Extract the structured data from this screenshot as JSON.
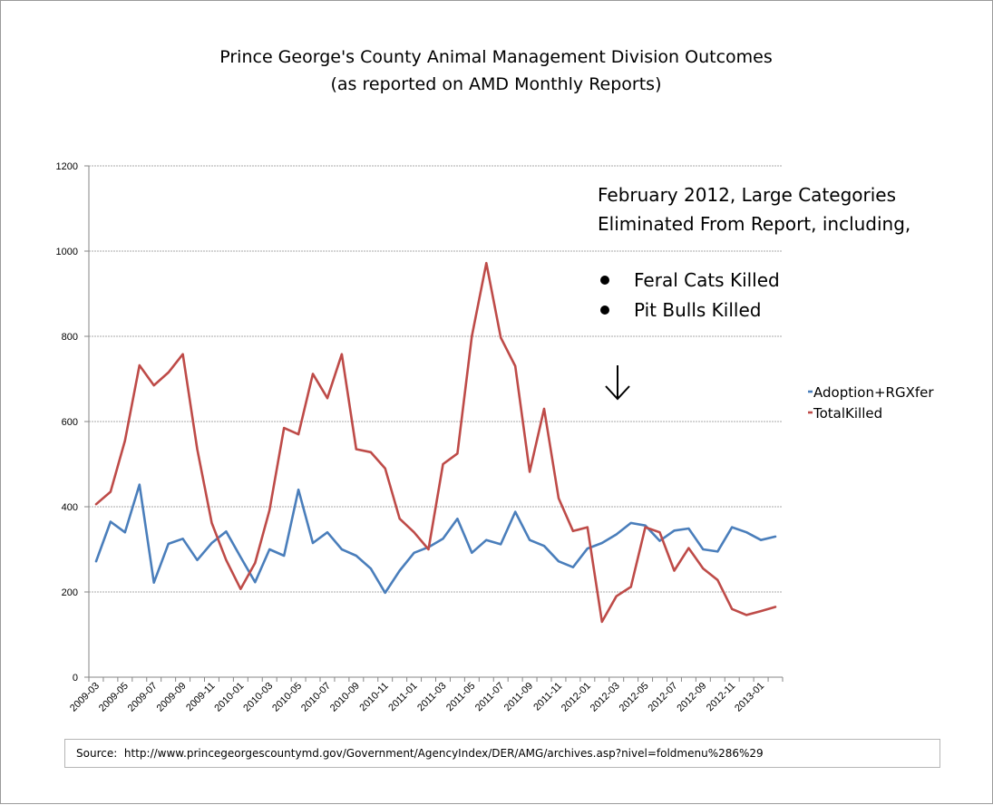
{
  "chart_data": {
    "type": "line",
    "title": "Prince George's County Animal Management Division Outcomes",
    "subtitle": "(as reported on AMD Monthly Reports)",
    "xlabel": "",
    "ylabel": "",
    "ylim": [
      0,
      1200
    ],
    "yticks": [
      "0",
      "200",
      "400",
      "600",
      "800",
      "1000",
      "1200"
    ],
    "grid": true,
    "legend_position": "right",
    "x": [
      "2009-03",
      "2009-04",
      "2009-05",
      "2009-06",
      "2009-07",
      "2009-08",
      "2009-09",
      "2009-10",
      "2009-11",
      "2009-12",
      "2010-01",
      "2010-02",
      "2010-03",
      "2010-04",
      "2010-05",
      "2010-06",
      "2010-07",
      "2010-08",
      "2010-09",
      "2010-10",
      "2010-11",
      "2010-12",
      "2011-01",
      "2011-02",
      "2011-03",
      "2011-04",
      "2011-05",
      "2011-06",
      "2011-07",
      "2011-08",
      "2011-09",
      "2011-10",
      "2011-11",
      "2011-12",
      "2012-01",
      "2012-02",
      "2012-03",
      "2012-04",
      "2012-05",
      "2012-06",
      "2012-07",
      "2012-08",
      "2012-09",
      "2012-10",
      "2012-11",
      "2012-12",
      "2013-01",
      "2013-02"
    ],
    "xtick_labels": [
      "2009-03",
      "2009-05",
      "2009-07",
      "2009-09",
      "2009-11",
      "2010-01",
      "2010-03",
      "2010-05",
      "2010-07",
      "2010-09",
      "2010-11",
      "2011-01",
      "2011-03",
      "2011-05",
      "2011-07",
      "2011-09",
      "2011-11",
      "2012-01",
      "2012-03",
      "2012-05",
      "2012-07",
      "2012-09",
      "2012-11",
      "2013-01"
    ],
    "series": [
      {
        "name": "Adoption+RGXfer",
        "color": "#4a7ebb",
        "values": [
          272,
          365,
          340,
          452,
          222,
          313,
          325,
          275,
          315,
          342,
          282,
          223,
          300,
          285,
          440,
          315,
          340,
          300,
          285,
          255,
          198,
          250,
          292,
          305,
          325,
          372,
          292,
          322,
          312,
          388,
          322,
          308,
          272,
          258,
          302,
          315,
          335,
          362,
          356,
          320,
          344,
          349,
          300,
          295,
          352,
          340,
          322,
          330
        ]
      },
      {
        "name": "TotalKilled",
        "color": "#be4b48",
        "values": [
          406,
          435,
          555,
          732,
          685,
          715,
          758,
          535,
          362,
          275,
          207,
          268,
          392,
          585,
          570,
          712,
          655,
          758,
          535,
          528,
          490,
          372,
          340,
          300,
          500,
          525,
          800,
          972,
          797,
          730,
          482,
          630,
          420,
          343,
          352,
          130,
          190,
          212,
          352,
          340,
          250,
          303,
          255,
          228,
          160,
          146,
          155,
          165
        ]
      }
    ],
    "annotations": {
      "line1": "February 2012, Large Categories",
      "line2": "Eliminated From Report, including,",
      "bullet1": "Feral Cats Killed",
      "bullet2": "Pit Bulls Killed"
    }
  },
  "source": {
    "label": "Source:",
    "url": "http://www.princegeorgescountymd.gov/Government/AgencyIndex/DER/AMG/archives.asp?nivel=foldmenu%286%29"
  }
}
